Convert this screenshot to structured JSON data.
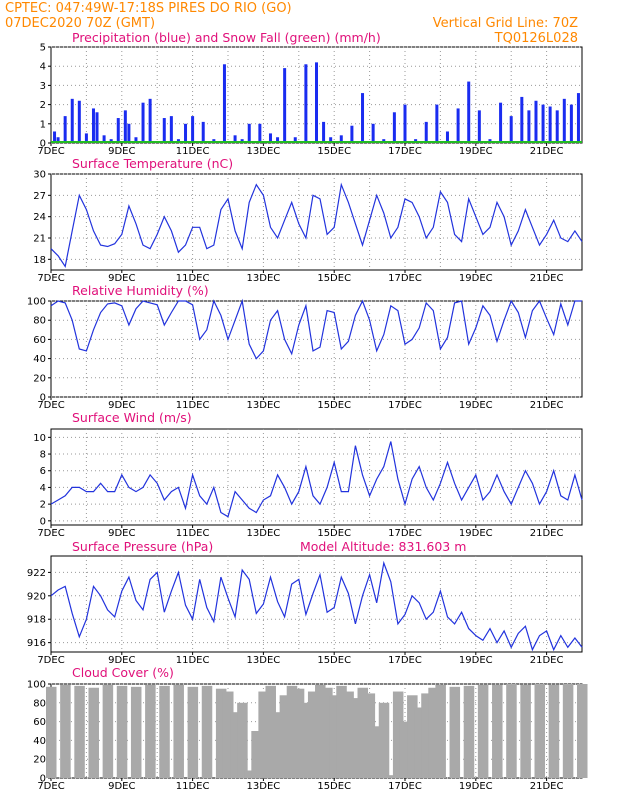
{
  "header": {
    "line1": "CPTEC:   047:49W-17:18S   PIRES DO RIO (GO)",
    "line2": "07DEC2020 70Z (GMT)",
    "right1": "Vertical Grid Line: 70Z",
    "right2": "TQ0126L028"
  },
  "colors": {
    "line": "#2233dd",
    "bar": "#1a2cf0",
    "snow": "#22bb22",
    "cloud": "#a9a9a9",
    "header": "#ff8800",
    "title": "#e0107a"
  },
  "x_ticks": [
    "7DEC",
    "9DEC",
    "11DEC",
    "13DEC",
    "15DEC",
    "17DEC",
    "19DEC",
    "21DEC"
  ],
  "x_range_days": [
    7,
    22
  ],
  "chart_data": [
    {
      "id": "precipitation",
      "type": "bar",
      "title": "Precipitation (blue) and Snow Fall (green) (mm/h)",
      "ylim": [
        0,
        5
      ],
      "yticks": [
        "0",
        "1",
        "2",
        "3",
        "4",
        "5"
      ],
      "series": [
        {
          "name": "Precipitation",
          "x": [
            7.1,
            7.2,
            7.4,
            7.6,
            7.8,
            8.0,
            8.2,
            8.3,
            8.5,
            8.7,
            8.9,
            9.1,
            9.2,
            9.4,
            9.6,
            9.8,
            10.0,
            10.2,
            10.4,
            10.6,
            10.8,
            11.0,
            11.3,
            11.6,
            11.9,
            12.2,
            12.4,
            12.6,
            12.9,
            13.2,
            13.4,
            13.6,
            13.9,
            14.2,
            14.5,
            14.7,
            14.9,
            15.2,
            15.5,
            15.8,
            16.1,
            16.4,
            16.7,
            17.0,
            17.3,
            17.6,
            17.9,
            18.2,
            18.5,
            18.8,
            19.1,
            19.4,
            19.7,
            20.0,
            20.3,
            20.5,
            20.7,
            20.9,
            21.1,
            21.3,
            21.5,
            21.7,
            21.9
          ],
          "values": [
            0.6,
            0.3,
            1.4,
            2.3,
            2.2,
            0.5,
            1.8,
            1.6,
            0.4,
            0.2,
            1.3,
            1.7,
            1.0,
            0.3,
            2.1,
            2.3,
            0.1,
            1.3,
            1.4,
            0.2,
            1.0,
            1.4,
            1.1,
            0.2,
            4.1,
            0.4,
            0.2,
            1.0,
            1.0,
            0.5,
            0.3,
            3.9,
            0.3,
            4.1,
            4.2,
            1.1,
            0.3,
            0.4,
            0.9,
            2.6,
            1.0,
            0.2,
            1.6,
            2.0,
            0.2,
            1.1,
            2.0,
            0.6,
            1.8,
            3.2,
            1.7,
            0.2,
            2.1,
            1.4,
            2.4,
            1.7,
            2.2,
            2.0,
            1.9,
            1.7,
            2.3,
            2.0,
            2.6
          ]
        },
        {
          "name": "Snow Fall",
          "x": [
            7.0,
            22.0
          ],
          "values": [
            0,
            0
          ]
        }
      ]
    },
    {
      "id": "temperature",
      "type": "line",
      "title": "Surface Temperature (nC)",
      "ylim": [
        16.5,
        30
      ],
      "yticks": [
        "18",
        "21",
        "24",
        "27",
        "30"
      ],
      "x": [
        7.0,
        7.2,
        7.4,
        7.6,
        7.8,
        8.0,
        8.2,
        8.4,
        8.6,
        8.8,
        9.0,
        9.2,
        9.4,
        9.6,
        9.8,
        10.0,
        10.2,
        10.4,
        10.6,
        10.8,
        11.0,
        11.2,
        11.4,
        11.6,
        11.8,
        12.0,
        12.2,
        12.4,
        12.6,
        12.8,
        13.0,
        13.2,
        13.4,
        13.6,
        13.8,
        14.0,
        14.2,
        14.4,
        14.6,
        14.8,
        15.0,
        15.2,
        15.4,
        15.6,
        15.8,
        16.0,
        16.2,
        16.4,
        16.6,
        16.8,
        17.0,
        17.2,
        17.4,
        17.6,
        17.8,
        18.0,
        18.2,
        18.4,
        18.6,
        18.8,
        19.0,
        19.2,
        19.4,
        19.6,
        19.8,
        20.0,
        20.2,
        20.4,
        20.6,
        20.8,
        21.0,
        21.2,
        21.4,
        21.6,
        21.8,
        22.0
      ],
      "values": [
        19.5,
        18.5,
        17.0,
        22.0,
        27.0,
        25.0,
        22.0,
        20.0,
        19.8,
        20.2,
        21.5,
        25.5,
        23.0,
        20.0,
        19.5,
        21.5,
        24.0,
        22.0,
        19.0,
        20.0,
        22.5,
        22.5,
        19.5,
        20.0,
        25.0,
        26.5,
        22.0,
        19.5,
        26.0,
        28.5,
        27.0,
        22.5,
        21.0,
        23.5,
        26.0,
        23.0,
        21.0,
        27.0,
        26.5,
        21.5,
        22.5,
        28.5,
        26.0,
        23.0,
        20.0,
        23.5,
        27.0,
        24.5,
        21.0,
        22.5,
        26.5,
        26.0,
        24.0,
        21.0,
        22.5,
        27.5,
        26.0,
        21.5,
        20.5,
        26.5,
        24.0,
        21.5,
        22.5,
        26.0,
        24.0,
        20.0,
        22.0,
        25.0,
        22.5,
        20.0,
        21.5,
        23.5,
        21.0,
        20.5,
        22.0,
        20.5
      ]
    },
    {
      "id": "humidity",
      "type": "line",
      "title": "Relative Humidity (%)",
      "ylim": [
        0,
        100
      ],
      "yticks": [
        "0",
        "20",
        "40",
        "60",
        "80",
        "100"
      ],
      "x": [
        7.0,
        7.2,
        7.4,
        7.6,
        7.8,
        8.0,
        8.2,
        8.4,
        8.6,
        8.8,
        9.0,
        9.2,
        9.4,
        9.6,
        9.8,
        10.0,
        10.2,
        10.4,
        10.6,
        10.8,
        11.0,
        11.2,
        11.4,
        11.6,
        11.8,
        12.0,
        12.2,
        12.4,
        12.6,
        12.8,
        13.0,
        13.2,
        13.4,
        13.6,
        13.8,
        14.0,
        14.2,
        14.4,
        14.6,
        14.8,
        15.0,
        15.2,
        15.4,
        15.6,
        15.8,
        16.0,
        16.2,
        16.4,
        16.6,
        16.8,
        17.0,
        17.2,
        17.4,
        17.6,
        17.8,
        18.0,
        18.2,
        18.4,
        18.6,
        18.8,
        19.0,
        19.2,
        19.4,
        19.6,
        19.8,
        20.0,
        20.2,
        20.4,
        20.6,
        20.8,
        21.0,
        21.2,
        21.4,
        21.6,
        21.8,
        22.0
      ],
      "values": [
        95,
        100,
        98,
        80,
        50,
        48,
        70,
        88,
        97,
        98,
        95,
        75,
        92,
        100,
        98,
        96,
        75,
        88,
        100,
        100,
        96,
        60,
        70,
        100,
        85,
        60,
        80,
        100,
        55,
        40,
        48,
        80,
        90,
        60,
        45,
        75,
        95,
        48,
        52,
        90,
        88,
        50,
        58,
        85,
        100,
        80,
        48,
        65,
        95,
        90,
        55,
        60,
        72,
        98,
        90,
        50,
        62,
        98,
        100,
        55,
        72,
        95,
        85,
        58,
        80,
        100,
        88,
        62,
        90,
        100,
        82,
        65,
        97,
        75,
        100,
        100
      ]
    },
    {
      "id": "wind",
      "type": "line",
      "title": "Surface Wind (m/s)",
      "ylim": [
        -0.5,
        11
      ],
      "yticks": [
        "0",
        "2",
        "4",
        "6",
        "8",
        "10"
      ],
      "x": [
        7.0,
        7.2,
        7.4,
        7.6,
        7.8,
        8.0,
        8.2,
        8.4,
        8.6,
        8.8,
        9.0,
        9.2,
        9.4,
        9.6,
        9.8,
        10.0,
        10.2,
        10.4,
        10.6,
        10.8,
        11.0,
        11.2,
        11.4,
        11.6,
        11.8,
        12.0,
        12.2,
        12.4,
        12.6,
        12.8,
        13.0,
        13.2,
        13.4,
        13.6,
        13.8,
        14.0,
        14.2,
        14.4,
        14.6,
        14.8,
        15.0,
        15.2,
        15.4,
        15.6,
        15.8,
        16.0,
        16.2,
        16.4,
        16.6,
        16.8,
        17.0,
        17.2,
        17.4,
        17.6,
        17.8,
        18.0,
        18.2,
        18.4,
        18.6,
        18.8,
        19.0,
        19.2,
        19.4,
        19.6,
        19.8,
        20.0,
        20.2,
        20.4,
        20.6,
        20.8,
        21.0,
        21.2,
        21.4,
        21.6,
        21.8,
        22.0
      ],
      "values": [
        2.0,
        2.5,
        3.0,
        4.0,
        4.0,
        3.5,
        3.5,
        4.5,
        3.5,
        3.5,
        5.5,
        4.0,
        3.5,
        4.0,
        5.5,
        4.5,
        2.5,
        3.5,
        4.0,
        1.5,
        5.5,
        3.0,
        2.0,
        4.0,
        1.0,
        0.5,
        3.5,
        2.5,
        1.5,
        1.0,
        2.5,
        3.0,
        5.5,
        4.0,
        2.0,
        3.5,
        6.5,
        3.0,
        2.0,
        4.0,
        7.0,
        3.5,
        3.5,
        9.0,
        5.5,
        3.0,
        5.0,
        6.5,
        9.5,
        5.0,
        2.0,
        5.0,
        6.5,
        4.0,
        2.5,
        4.5,
        7.0,
        4.5,
        2.5,
        4.0,
        5.5,
        2.5,
        3.5,
        5.5,
        3.5,
        2.0,
        4.0,
        6.0,
        4.5,
        2.0,
        3.5,
        6.0,
        3.0,
        2.5,
        5.5,
        2.5
      ]
    },
    {
      "id": "pressure",
      "type": "line",
      "title": "Surface Pressure (hPa)",
      "subtitle": "Model Altitude: 831.603 m",
      "ylim": [
        915.2,
        923.4
      ],
      "yticks": [
        "916",
        "918",
        "920",
        "922"
      ],
      "x": [
        7.0,
        7.2,
        7.4,
        7.6,
        7.8,
        8.0,
        8.2,
        8.4,
        8.6,
        8.8,
        9.0,
        9.2,
        9.4,
        9.6,
        9.8,
        10.0,
        10.2,
        10.4,
        10.6,
        10.8,
        11.0,
        11.2,
        11.4,
        11.6,
        11.8,
        12.0,
        12.2,
        12.4,
        12.6,
        12.8,
        13.0,
        13.2,
        13.4,
        13.6,
        13.8,
        14.0,
        14.2,
        14.4,
        14.6,
        14.8,
        15.0,
        15.2,
        15.4,
        15.6,
        15.8,
        16.0,
        16.2,
        16.4,
        16.6,
        16.8,
        17.0,
        17.2,
        17.4,
        17.6,
        17.8,
        18.0,
        18.2,
        18.4,
        18.6,
        18.8,
        19.0,
        19.2,
        19.4,
        19.6,
        19.8,
        20.0,
        20.2,
        20.4,
        20.6,
        20.8,
        21.0,
        21.2,
        21.4,
        21.6,
        21.8,
        22.0
      ],
      "values": [
        920.0,
        920.5,
        920.8,
        918.5,
        916.5,
        918.0,
        920.8,
        920.0,
        918.8,
        918.2,
        920.4,
        921.6,
        919.6,
        918.8,
        921.4,
        922.0,
        918.6,
        920.4,
        922.0,
        919.2,
        918.0,
        921.4,
        919.0,
        917.8,
        921.6,
        919.8,
        918.2,
        922.2,
        921.4,
        918.5,
        919.3,
        921.6,
        919.5,
        918.2,
        921.0,
        921.4,
        918.4,
        920.2,
        921.8,
        918.6,
        919.0,
        921.6,
        920.2,
        917.6,
        920.0,
        921.8,
        919.4,
        922.8,
        921.2,
        917.6,
        918.4,
        920.0,
        919.4,
        918.0,
        918.6,
        920.4,
        918.2,
        917.6,
        918.6,
        917.2,
        916.6,
        916.2,
        917.2,
        916.0,
        917.0,
        915.6,
        916.8,
        917.4,
        915.4,
        916.6,
        917.0,
        915.4,
        916.6,
        915.6,
        916.4,
        915.6
      ]
    },
    {
      "id": "cloud",
      "type": "area",
      "title": "Cloud Cover (%)",
      "ylim": [
        0,
        100
      ],
      "yticks": [
        "0",
        "20",
        "40",
        "60",
        "80",
        "100"
      ],
      "x": [
        7.0,
        7.4,
        7.8,
        8.2,
        8.6,
        9.0,
        9.4,
        9.8,
        10.2,
        10.6,
        11.0,
        11.4,
        11.8,
        12.0,
        12.2,
        12.4,
        12.6,
        12.8,
        13.0,
        13.2,
        13.4,
        13.6,
        13.8,
        14.0,
        14.2,
        14.4,
        14.6,
        14.8,
        15.0,
        15.2,
        15.4,
        15.6,
        15.8,
        16.0,
        16.2,
        16.4,
        16.6,
        16.8,
        17.0,
        17.2,
        17.4,
        17.6,
        17.8,
        18.0,
        18.4,
        18.8,
        19.2,
        19.6,
        20.0,
        20.4,
        20.8,
        21.2,
        21.6,
        22.0
      ],
      "values": [
        97,
        99,
        98,
        96,
        99,
        98,
        97,
        99,
        98,
        99,
        97,
        98,
        95,
        92,
        70,
        80,
        8,
        50,
        92,
        98,
        70,
        88,
        98,
        95,
        80,
        92,
        99,
        96,
        88,
        98,
        92,
        85,
        96,
        90,
        55,
        80,
        3,
        92,
        60,
        88,
        75,
        90,
        96,
        99,
        97,
        98,
        99,
        99,
        100,
        99,
        100,
        99,
        100,
        100
      ]
    }
  ]
}
